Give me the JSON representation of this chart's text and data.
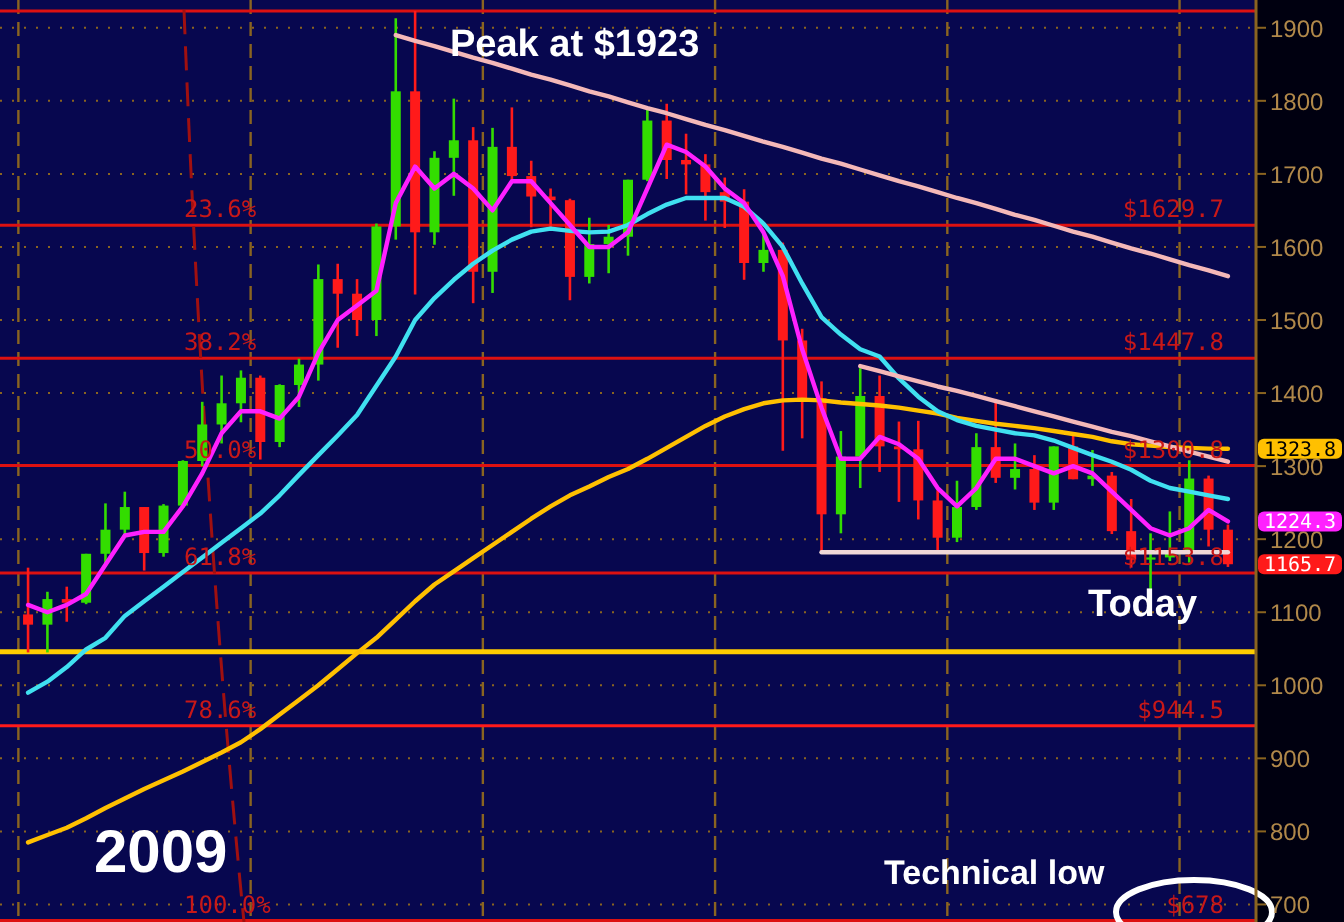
{
  "chart_data": {
    "type": "candlestick",
    "categories": [
      null,
      null,
      null,
      null,
      null,
      null,
      null,
      null,
      null,
      null,
      null,
      null,
      null,
      null,
      null,
      null,
      null,
      null,
      null,
      null,
      null,
      null,
      null,
      null,
      null,
      null,
      null,
      null,
      null,
      null,
      null,
      null,
      null,
      null,
      null,
      null,
      null,
      null,
      null,
      null,
      null,
      null,
      null,
      null,
      null,
      null,
      null,
      null,
      null,
      null,
      null,
      null,
      null,
      null,
      null,
      null,
      null,
      null,
      null,
      null,
      null,
      null,
      null
    ],
    "ohlc": [
      [
        1097,
        1161,
        1045,
        1083
      ],
      [
        1083,
        1128,
        1045,
        1118
      ],
      [
        1118,
        1135,
        1087,
        1113
      ],
      [
        1113,
        1180,
        1111,
        1180
      ],
      [
        1180,
        1249,
        1166,
        1213
      ],
      [
        1213,
        1265,
        1203,
        1244
      ],
      [
        1244,
        1244,
        1157,
        1181
      ],
      [
        1181,
        1248,
        1176,
        1246
      ],
      [
        1246,
        1308,
        1243,
        1307
      ],
      [
        1307,
        1388,
        1300,
        1357
      ],
      [
        1357,
        1424,
        1331,
        1386
      ],
      [
        1386,
        1431,
        1360,
        1421
      ],
      [
        1421,
        1424,
        1309,
        1333
      ],
      [
        1333,
        1412,
        1326,
        1411
      ],
      [
        1411,
        1447,
        1381,
        1439
      ],
      [
        1439,
        1576,
        1417,
        1556
      ],
      [
        1556,
        1577,
        1462,
        1536
      ],
      [
        1536,
        1556,
        1478,
        1500
      ],
      [
        1500,
        1632,
        1478,
        1628
      ],
      [
        1628,
        1913,
        1610,
        1813
      ],
      [
        1813,
        1923,
        1535,
        1620
      ],
      [
        1620,
        1731,
        1603,
        1722
      ],
      [
        1722,
        1803,
        1670,
        1746
      ],
      [
        1746,
        1764,
        1523,
        1566
      ],
      [
        1566,
        1763,
        1537,
        1737
      ],
      [
        1737,
        1791,
        1688,
        1697
      ],
      [
        1697,
        1718,
        1627,
        1669
      ],
      [
        1669,
        1680,
        1627,
        1664
      ],
      [
        1664,
        1666,
        1527,
        1559
      ],
      [
        1559,
        1640,
        1550,
        1604
      ],
      [
        1604,
        1630,
        1564,
        1614
      ],
      [
        1614,
        1692,
        1588,
        1692
      ],
      [
        1692,
        1788,
        1690,
        1773
      ],
      [
        1773,
        1796,
        1693,
        1719
      ],
      [
        1719,
        1755,
        1672,
        1713
      ],
      [
        1713,
        1727,
        1636,
        1675
      ],
      [
        1675,
        1695,
        1626,
        1662
      ],
      [
        1662,
        1679,
        1555,
        1578
      ],
      [
        1578,
        1617,
        1566,
        1596
      ],
      [
        1596,
        1606,
        1321,
        1472
      ],
      [
        1472,
        1488,
        1338,
        1393
      ],
      [
        1393,
        1416,
        1180,
        1234
      ],
      [
        1234,
        1348,
        1208,
        1313
      ],
      [
        1313,
        1434,
        1270,
        1396
      ],
      [
        1396,
        1424,
        1292,
        1327
      ],
      [
        1327,
        1361,
        1251,
        1323
      ],
      [
        1323,
        1362,
        1227,
        1253
      ],
      [
        1253,
        1267,
        1182,
        1202
      ],
      [
        1202,
        1280,
        1196,
        1244
      ],
      [
        1244,
        1345,
        1240,
        1326
      ],
      [
        1326,
        1392,
        1277,
        1284
      ],
      [
        1284,
        1331,
        1268,
        1296
      ],
      [
        1296,
        1315,
        1240,
        1250
      ],
      [
        1250,
        1327,
        1240,
        1327
      ],
      [
        1327,
        1345,
        1282,
        1282
      ],
      [
        1282,
        1322,
        1273,
        1287
      ],
      [
        1287,
        1292,
        1207,
        1211
      ],
      [
        1211,
        1255,
        1161,
        1172
      ],
      [
        1172,
        1208,
        1132,
        1175
      ],
      [
        1175,
        1238,
        1170,
        1184
      ],
      [
        1184,
        1308,
        1168,
        1283
      ],
      [
        1283,
        1287,
        1190,
        1213
      ],
      [
        1213,
        1220,
        1162,
        1165.7
      ]
    ],
    "value_labels": [
      null,
      null,
      null,
      null,
      null,
      null,
      null,
      null,
      null,
      null,
      null,
      null,
      null,
      null,
      null,
      null,
      null,
      null,
      null,
      null,
      null,
      null,
      null,
      null,
      null,
      null,
      null,
      null,
      null,
      null,
      null,
      null,
      null,
      null,
      null,
      null,
      null,
      null,
      null,
      null,
      null,
      null,
      null,
      null,
      null,
      null,
      null,
      null,
      null,
      null,
      null,
      null,
      null,
      null,
      null,
      null,
      null,
      null,
      null,
      null,
      null,
      null,
      "1165.7"
    ],
    "series": [
      {
        "type": "line",
        "color": "#ffc000",
        "values": [
          785,
          795,
          805,
          818,
          832,
          845,
          858,
          870,
          882,
          895,
          908,
          922,
          940,
          960,
          980,
          1000,
          1022,
          1044,
          1065,
          1090,
          1115,
          1138,
          1156,
          1174,
          1192,
          1210,
          1228,
          1245,
          1260,
          1272,
          1285,
          1296,
          1310,
          1325,
          1340,
          1355,
          1368,
          1378,
          1386,
          1390,
          1391,
          1390,
          1387,
          1385,
          1383,
          1380,
          1376,
          1372,
          1366,
          1362,
          1358,
          1355,
          1352,
          1348,
          1344,
          1340,
          1334,
          1330,
          1328,
          1326,
          1325,
          1324,
          1323.8
        ],
        "value_labels": [
          null,
          null,
          null,
          null,
          null,
          null,
          null,
          null,
          null,
          null,
          null,
          null,
          null,
          null,
          null,
          null,
          null,
          null,
          null,
          null,
          null,
          null,
          null,
          null,
          null,
          null,
          null,
          null,
          null,
          null,
          null,
          null,
          null,
          null,
          null,
          null,
          null,
          null,
          null,
          null,
          null,
          null,
          null,
          null,
          null,
          null,
          null,
          null,
          null,
          null,
          null,
          null,
          null,
          null,
          null,
          null,
          null,
          null,
          null,
          null,
          null,
          null,
          "1323.8"
        ]
      },
      {
        "type": "line",
        "color": "#40e0f0",
        "values": [
          990,
          1005,
          1025,
          1049,
          1065,
          1095,
          1115,
          1135,
          1155,
          1175,
          1195,
          1215,
          1235,
          1260,
          1288,
          1315,
          1342,
          1370,
          1410,
          1450,
          1500,
          1530,
          1555,
          1577,
          1595,
          1610,
          1621,
          1625,
          1622,
          1620,
          1621,
          1630,
          1645,
          1658,
          1667,
          1667,
          1667,
          1655,
          1632,
          1600,
          1550,
          1504,
          1480,
          1460,
          1450,
          1420,
          1395,
          1375,
          1363,
          1355,
          1350,
          1345,
          1342,
          1335,
          1325,
          1315,
          1306,
          1295,
          1280,
          1270,
          1265,
          1260,
          1255
        ]
      },
      {
        "type": "line",
        "color": "#ff20ff",
        "values": [
          1110,
          1100,
          1110,
          1125,
          1165,
          1205,
          1210,
          1210,
          1245,
          1290,
          1345,
          1375,
          1375,
          1365,
          1395,
          1455,
          1500,
          1520,
          1540,
          1660,
          1710,
          1680,
          1700,
          1680,
          1650,
          1690,
          1690,
          1660,
          1630,
          1600,
          1600,
          1620,
          1680,
          1740,
          1730,
          1710,
          1680,
          1660,
          1620,
          1560,
          1460,
          1380,
          1310,
          1310,
          1340,
          1330,
          1310,
          1270,
          1245,
          1270,
          1310,
          1310,
          1300,
          1290,
          1300,
          1290,
          1265,
          1240,
          1215,
          1205,
          1215,
          1240,
          1224.3
        ],
        "value_labels": [
          null,
          null,
          null,
          null,
          null,
          null,
          null,
          null,
          null,
          null,
          null,
          null,
          null,
          null,
          null,
          null,
          null,
          null,
          null,
          null,
          null,
          null,
          null,
          null,
          null,
          null,
          null,
          null,
          null,
          null,
          null,
          null,
          null,
          null,
          null,
          null,
          null,
          null,
          null,
          null,
          null,
          null,
          null,
          null,
          null,
          null,
          null,
          null,
          null,
          null,
          null,
          null,
          null,
          null,
          null,
          null,
          null,
          null,
          null,
          null,
          null,
          null,
          "1224.3"
        ]
      },
      {
        "type": "line",
        "color": "#f4b8b8",
        "values": [
          null,
          null,
          null,
          null,
          null,
          null,
          null,
          null,
          null,
          null,
          null,
          null,
          null,
          null,
          null,
          null,
          null,
          null,
          null,
          1890,
          1882,
          1875,
          1867,
          1859,
          1852,
          1844,
          1836,
          1829,
          1821,
          1813,
          1806,
          1798,
          1790,
          1783,
          1775,
          1767,
          1760,
          1752,
          1744,
          1737,
          1729,
          1721,
          1714,
          1706,
          1698,
          1690,
          1683,
          1675,
          1667,
          1660,
          1652,
          1644,
          1637,
          1629,
          1621,
          1614,
          1606,
          1598,
          1591,
          1583,
          1575,
          1568,
          1560
        ]
      },
      {
        "type": "line",
        "color": "#f4b8b8",
        "values": [
          null,
          null,
          null,
          null,
          null,
          null,
          null,
          null,
          null,
          null,
          null,
          null,
          null,
          null,
          null,
          null,
          null,
          null,
          null,
          null,
          null,
          null,
          null,
          null,
          null,
          null,
          null,
          null,
          null,
          null,
          null,
          null,
          null,
          null,
          null,
          null,
          null,
          null,
          null,
          null,
          null,
          null,
          null,
          1437,
          1430,
          1423,
          1416,
          1409,
          1403,
          1396,
          1389,
          1382,
          1375,
          1368,
          1361,
          1354,
          1347,
          1341,
          1334,
          1327,
          1320,
          1313,
          1306
        ]
      },
      {
        "type": "line",
        "color": "#f0d8d8",
        "values": [
          null,
          null,
          null,
          null,
          null,
          null,
          null,
          null,
          null,
          null,
          null,
          null,
          null,
          null,
          null,
          null,
          null,
          null,
          null,
          null,
          null,
          null,
          null,
          null,
          null,
          null,
          null,
          null,
          null,
          null,
          null,
          null,
          null,
          null,
          null,
          null,
          null,
          null,
          null,
          null,
          null,
          1182,
          1182,
          1182,
          1182,
          1182,
          1182,
          1182,
          1182,
          1182,
          1182,
          1182,
          1182,
          1182,
          1182,
          1182,
          1182,
          1182,
          1182,
          1182,
          1182,
          1182,
          1182
        ]
      }
    ],
    "ylim": [
      676,
      1938
    ],
    "yticks": [
      700,
      800,
      900,
      1000,
      1100,
      1200,
      1300,
      1400,
      1500,
      1600,
      1700,
      1800,
      1900
    ],
    "grid": true,
    "ref_lines": [
      {
        "axis": "y",
        "value": 1923,
        "color": "#dd1111"
      },
      {
        "axis": "y",
        "value": 1629.7,
        "label": "$1629.7",
        "color": "#dd1111"
      },
      {
        "axis": "y",
        "value": 1447.8,
        "label": "$1447.8",
        "color": "#dd1111"
      },
      {
        "axis": "y",
        "value": 1300.8,
        "label": "$1300.8",
        "color": "#dd1111"
      },
      {
        "axis": "y",
        "value": 1153.8,
        "label": "$1153.8",
        "color": "#dd1111"
      },
      {
        "axis": "y",
        "value": 944.5,
        "label": "$944.5",
        "color": "#ff1a1a"
      },
      {
        "axis": "y",
        "value": 678,
        "label": "$678",
        "color": "#dd1111"
      },
      {
        "axis": "y",
        "value": 1046,
        "color": "#ffcc00"
      }
    ],
    "annotations": [
      "Peak at $1923",
      "2009",
      "Today",
      "Technical low",
      {
        "text": "23.6%",
        "y": 1629.7
      },
      {
        "text": "38.2%",
        "y": 1447.8
      },
      {
        "text": "50.0%",
        "y": 1300.8
      },
      {
        "text": "61.8%",
        "y": 1153.8
      },
      {
        "text": "78.6%",
        "y": 944.5
      },
      {
        "text": "100.0%",
        "y": 678
      }
    ]
  }
}
